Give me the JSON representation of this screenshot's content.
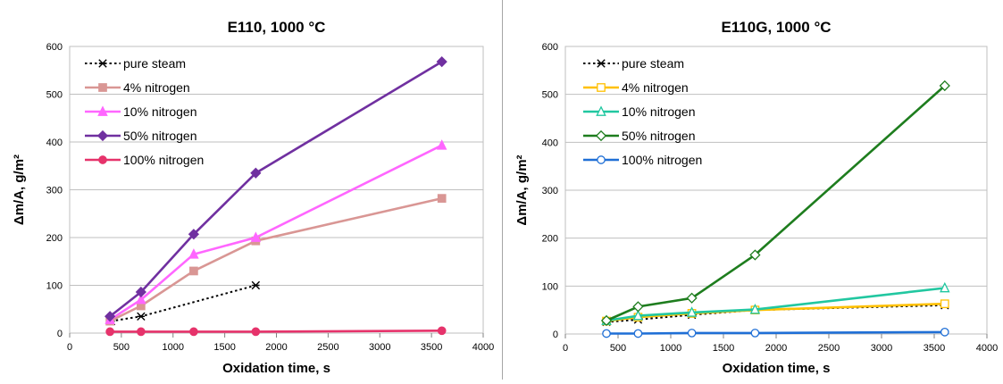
{
  "chart_data": [
    {
      "type": "line",
      "title": "E110, 1000 °C",
      "xlabel": "Oxidation time, s",
      "ylabel": "Δm/A, g/m²",
      "xlim": [
        0,
        4000
      ],
      "ylim": [
        0,
        600
      ],
      "xticks": [
        0,
        500,
        1000,
        1500,
        2000,
        2500,
        3000,
        3500,
        4000
      ],
      "yticks": [
        0,
        100,
        200,
        300,
        400,
        500,
        600
      ],
      "grid": true,
      "legend": "top-left",
      "series": [
        {
          "name": "pure steam",
          "color": "#000000",
          "dash": true,
          "marker": "asterisk",
          "x": [
            400,
            690,
            1800
          ],
          "y": [
            25,
            35,
            100
          ]
        },
        {
          "name": "4% nitrogen",
          "color": "#d99694",
          "marker": "square",
          "x": [
            390,
            690,
            1200,
            1800,
            3600
          ],
          "y": [
            25,
            57,
            130,
            193,
            282
          ]
        },
        {
          "name": "10% nitrogen",
          "color": "#ff66ff",
          "marker": "triangle",
          "x": [
            390,
            690,
            1200,
            1800,
            3600
          ],
          "y": [
            28,
            70,
            165,
            200,
            393
          ]
        },
        {
          "name": "50% nitrogen",
          "color": "#7030a0",
          "marker": "diamond",
          "x": [
            390,
            690,
            1200,
            1800,
            3600
          ],
          "y": [
            35,
            86,
            207,
            335,
            568
          ]
        },
        {
          "name": "100% nitrogen",
          "color": "#e6336b",
          "marker": "circle",
          "x": [
            390,
            690,
            1200,
            1800,
            3600
          ],
          "y": [
            3,
            3,
            3,
            3,
            5
          ]
        }
      ]
    },
    {
      "type": "line",
      "title": "E110G, 1000 °C",
      "xlabel": "Oxidation time, s",
      "ylabel": "Δm/A, g/m²",
      "xlim": [
        0,
        4000
      ],
      "ylim": [
        0,
        600
      ],
      "xticks": [
        0,
        500,
        1000,
        1500,
        2000,
        2500,
        3000,
        3500,
        4000
      ],
      "yticks": [
        0,
        100,
        200,
        300,
        400,
        500,
        600
      ],
      "grid": true,
      "legend": "top-left",
      "series": [
        {
          "name": "pure steam",
          "color": "#000000",
          "dash": true,
          "marker": "asterisk",
          "x": [
            390,
            690,
            1200,
            1800,
            3600
          ],
          "y": [
            25,
            30,
            40,
            50,
            60
          ]
        },
        {
          "name": "4% nitrogen",
          "color": "#ffc000",
          "marker": "square-open",
          "x": [
            390,
            690,
            1200,
            1800,
            3600
          ],
          "y": [
            27,
            35,
            43,
            50,
            63
          ]
        },
        {
          "name": "10% nitrogen",
          "color": "#21c7a0",
          "marker": "triangle-open",
          "x": [
            390,
            690,
            1200,
            1800,
            3600
          ],
          "y": [
            28,
            38,
            45,
            51,
            96
          ]
        },
        {
          "name": "50% nitrogen",
          "color": "#1e7d1e",
          "marker": "diamond-open",
          "x": [
            390,
            690,
            1200,
            1800,
            3600
          ],
          "y": [
            28,
            57,
            75,
            165,
            518
          ]
        },
        {
          "name": "100% nitrogen",
          "color": "#1f6fd6",
          "marker": "circle-open",
          "x": [
            390,
            690,
            1200,
            1800,
            3600
          ],
          "y": [
            1,
            1,
            2,
            2,
            4
          ]
        }
      ]
    }
  ]
}
